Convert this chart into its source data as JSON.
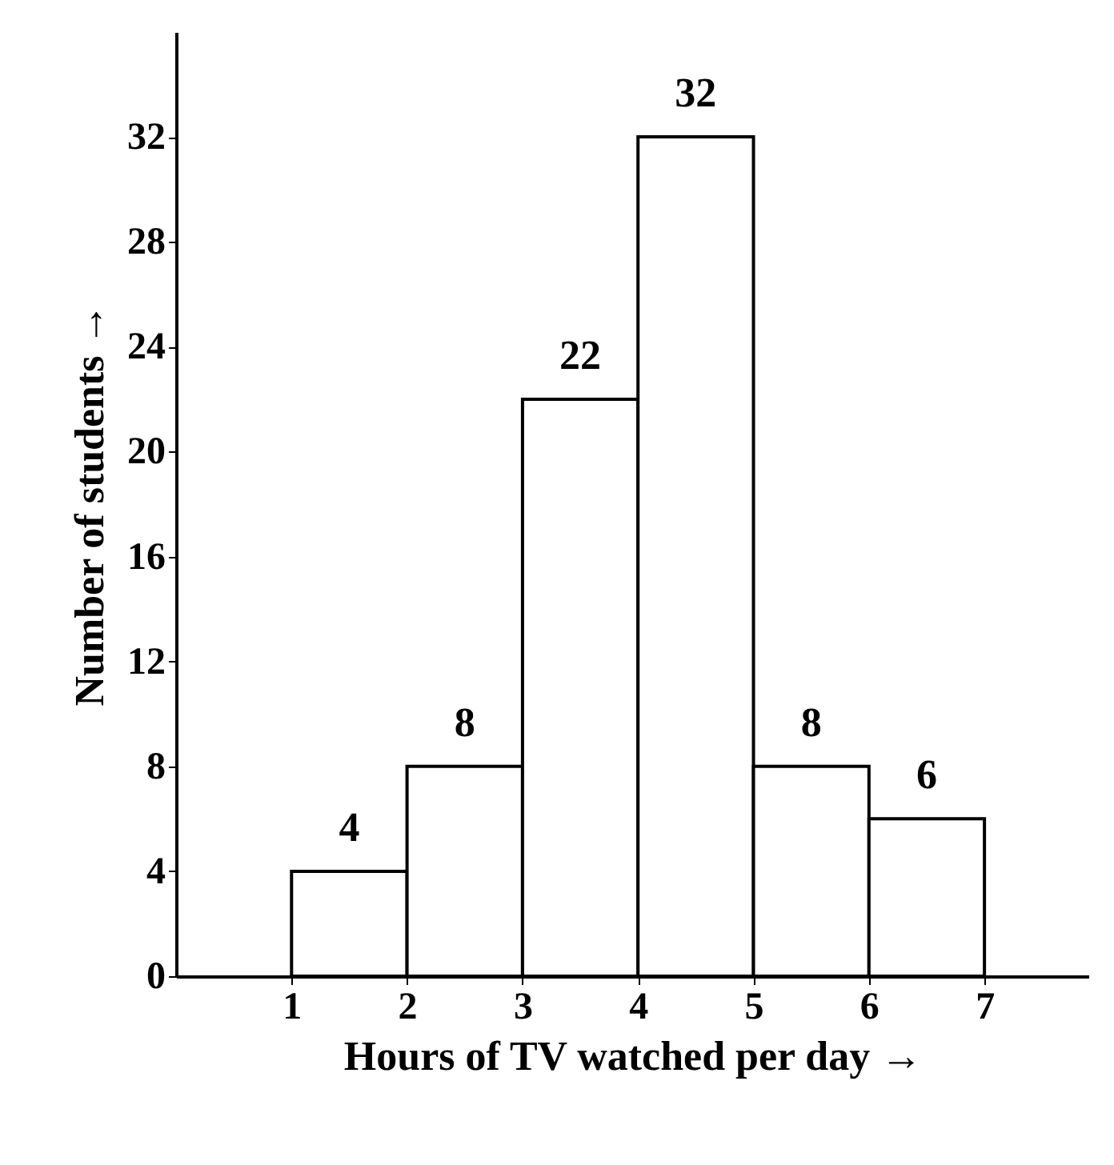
{
  "chart_data": {
    "type": "histogram",
    "xlabel": "Hours of TV watched per day →",
    "ylabel": "Number of students →",
    "bins": [
      1,
      2,
      3,
      4,
      5,
      6,
      7
    ],
    "values": [
      4,
      8,
      22,
      32,
      8,
      6
    ],
    "color": "#ffffff",
    "data_labels": true,
    "grid": false,
    "xlim": [
      0,
      7.9
    ],
    "xticks": [
      1,
      2,
      3,
      4,
      5,
      6,
      7
    ],
    "ylim": [
      0,
      36
    ],
    "yticks": [
      0,
      4,
      8,
      12,
      16,
      20,
      24,
      28,
      32
    ]
  }
}
